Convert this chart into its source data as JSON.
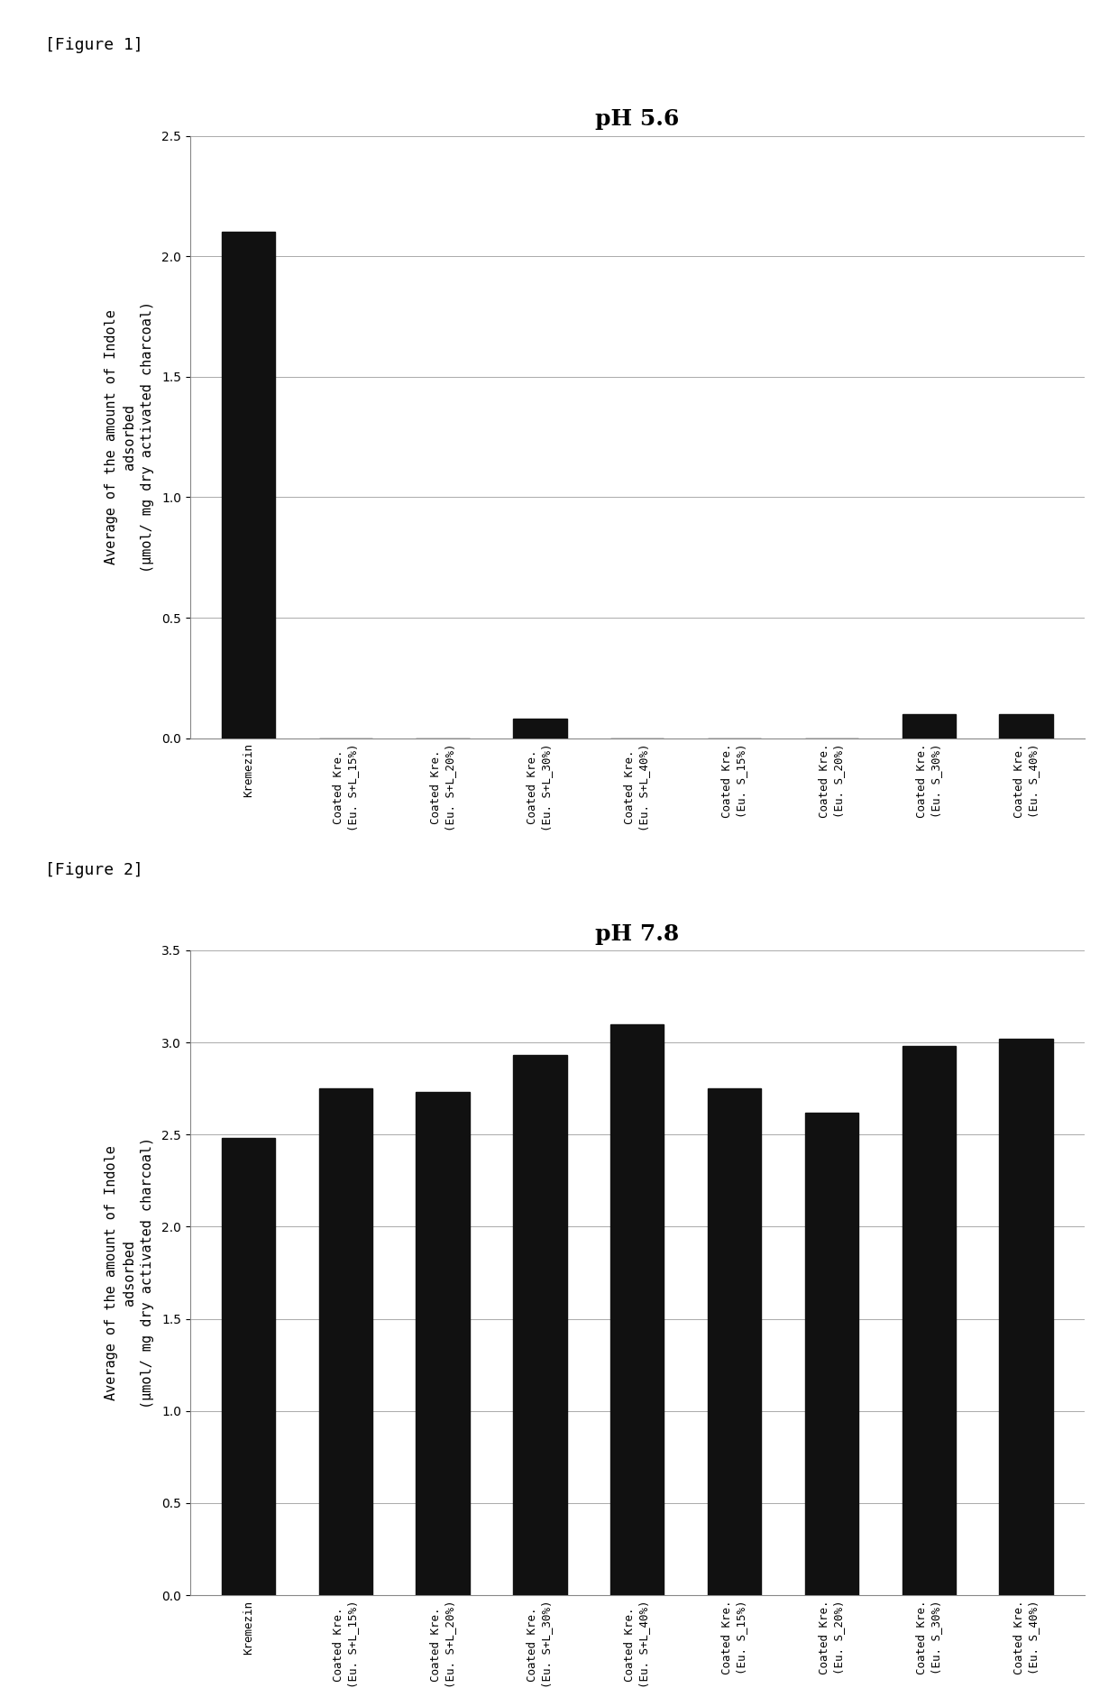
{
  "fig1": {
    "title": "pH 5.6",
    "categories": [
      "Kremezin",
      "Coated Kre.\n(Eu. S+L_15%)",
      "Coated Kre.\n(Eu. S+L_20%)",
      "Coated Kre.\n(Eu. S+L_30%)",
      "Coated Kre.\n(Eu. S+L_40%)",
      "Coated Kre.\n(Eu. S_15%)",
      "Coated Kre.\n(Eu. S_20%)",
      "Coated Kre.\n(Eu. S_30%)",
      "Coated Kre.\n(Eu. S_40%)"
    ],
    "values": [
      2.1,
      0.0,
      0.0,
      0.08,
      0.0,
      0.0,
      0.0,
      0.1,
      0.1
    ],
    "ylim": [
      0.0,
      2.5
    ],
    "yticks": [
      0.0,
      0.5,
      1.0,
      1.5,
      2.0,
      2.5
    ],
    "figure_label": "[Figure 1]"
  },
  "fig2": {
    "title": "pH 7.8",
    "categories": [
      "Kremezin",
      "Coated Kre.\n(Eu. S+L_15%)",
      "Coated Kre.\n(Eu. S+L_20%)",
      "Coated Kre.\n(Eu. S+L_30%)",
      "Coated Kre.\n(Eu. S+L_40%)",
      "Coated Kre.\n(Eu. S_15%)",
      "Coated Kre.\n(Eu. S_20%)",
      "Coated Kre.\n(Eu. S_30%)",
      "Coated Kre.\n(Eu. S_40%)"
    ],
    "values": [
      2.48,
      2.75,
      2.73,
      2.93,
      3.1,
      2.75,
      2.62,
      2.98,
      3.02
    ],
    "ylim": [
      0.0,
      3.5
    ],
    "yticks": [
      0.0,
      0.5,
      1.0,
      1.5,
      2.0,
      2.5,
      3.0,
      3.5
    ],
    "figure_label": "[Figure 2]"
  },
  "ylabel": "Average of the amount of Indole\nadsorbed\n(μmol/ mg dry activated charcoal)",
  "bar_color": "#111111",
  "bar_edge_color": "#111111",
  "grid_color": "#aaaaaa",
  "background_color": "#ffffff",
  "title_fontsize": 18,
  "ylabel_fontsize": 11,
  "ytick_fontsize": 10,
  "xtick_fontsize": 9,
  "figure_label_fontsize": 13,
  "bar_width": 0.55
}
